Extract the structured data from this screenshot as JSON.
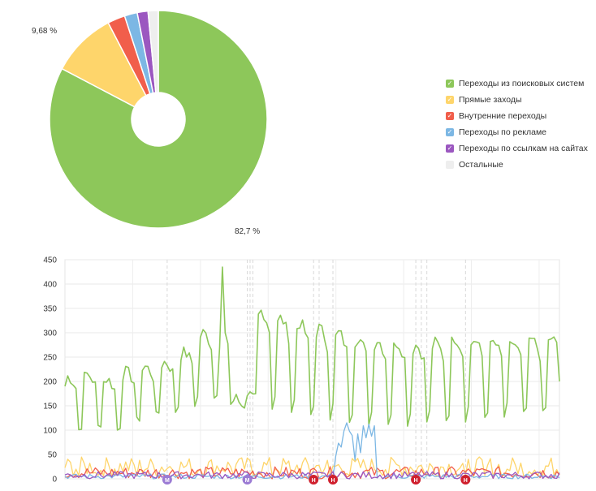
{
  "chart_data": [
    {
      "type": "pie",
      "donut": true,
      "slices": [
        {
          "label": "Переходы из поисковых систем",
          "value": 82.7,
          "color": "#8dc75a",
          "check": true
        },
        {
          "label": "Прямые заходы",
          "value": 9.68,
          "color": "#fed56b",
          "check": true
        },
        {
          "label": "Внутренние переходы",
          "value": 2.6,
          "color": "#f15e4b",
          "check": true
        },
        {
          "label": "Переходы по рекламе",
          "value": 1.9,
          "color": "#7cb7e4",
          "check": true
        },
        {
          "label": "Переходы по ссылкам на сайтах",
          "value": 1.6,
          "color": "#9b57c0",
          "check": true
        },
        {
          "label": "Остальные",
          "value": 1.52,
          "color": "#eeeeee",
          "check": false
        }
      ],
      "data_labels": {
        "main": "82,7 %",
        "second": "9,68 %"
      },
      "legend_position": "right"
    },
    {
      "type": "line",
      "ylim": [
        0,
        450
      ],
      "yticks": [
        "0",
        "50",
        "100",
        "150",
        "200",
        "250",
        "300",
        "350",
        "400",
        "450"
      ],
      "grid": true,
      "points": 180,
      "series": [
        {
          "color": "#8dc75a",
          "start": 190,
          "end": 200,
          "peak_day": 57,
          "peak_value": 435,
          "weekly_high": [
            210,
            215,
            205,
            220,
            230,
            240,
            260,
            300,
            290,
            330,
            345,
            330,
            320,
            310,
            300,
            290,
            285,
            280,
            275,
            280,
            290,
            285,
            280,
            280,
            285,
            290
          ],
          "weekly_low": [
            95,
            100,
            95,
            110,
            120,
            135,
            150,
            160,
            130,
            140,
            140,
            130,
            120,
            120,
            115,
            110,
            110,
            110,
            110,
            115,
            120,
            120,
            120,
            120,
            120,
            125
          ]
        },
        {
          "color": "#fed56b",
          "typical": [
            5,
            45
          ]
        },
        {
          "color": "#f15e4b",
          "typical": [
            0,
            25
          ]
        },
        {
          "color": "#7cb7e4",
          "typical": [
            0,
            10
          ],
          "burst_days": [
            98,
            112
          ],
          "burst_max": 115
        },
        {
          "color": "#9b57c0",
          "typical": [
            0,
            15
          ]
        }
      ],
      "markers": [
        {
          "label": "М",
          "day": 37,
          "color": "#9b7bd4"
        },
        {
          "label": "М",
          "day": 66,
          "color": "#9b7bd4"
        },
        {
          "label": "Н",
          "day": 90,
          "color": "#d0202e"
        },
        {
          "label": "Н",
          "day": 97,
          "color": "#d0202e"
        },
        {
          "label": "Н",
          "day": 127,
          "color": "#d0202e"
        },
        {
          "label": "Н",
          "day": 145,
          "color": "#d0202e"
        }
      ]
    }
  ]
}
